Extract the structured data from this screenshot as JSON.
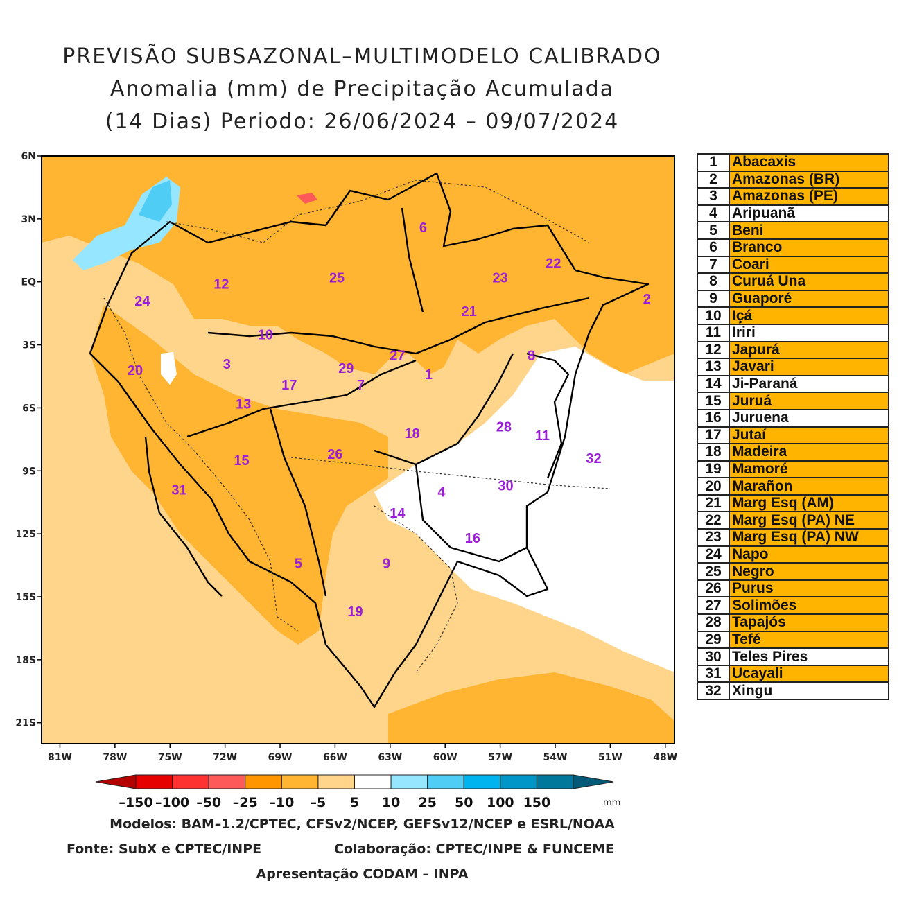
{
  "title": {
    "line1": "PREVISÃO SUBSAZONAL–MULTIMODELO CALIBRADO",
    "line2": "Anomalia (mm) de Precipitação Acumulada",
    "line3": "(14 Dias) Periodo: 26/06/2024 – 09/07/2024"
  },
  "map": {
    "lat_labels": [
      "6N",
      "3N",
      "EQ",
      "3S",
      "6S",
      "9S",
      "12S",
      "15S",
      "18S",
      "21S"
    ],
    "lon_labels": [
      "81W",
      "78W",
      "75W",
      "72W",
      "69W",
      "66W",
      "63W",
      "60W",
      "57W",
      "54W",
      "51W",
      "48W"
    ],
    "basins": [
      {
        "num": "1",
        "lon": -60.9,
        "lat": -4.4
      },
      {
        "num": "2",
        "lon": -49.0,
        "lat": -0.8
      },
      {
        "num": "3",
        "lon": -71.9,
        "lat": -3.9
      },
      {
        "num": "4",
        "lon": -60.2,
        "lat": -10.0
      },
      {
        "num": "5",
        "lon": -68.0,
        "lat": -13.4
      },
      {
        "num": "6",
        "lon": -61.2,
        "lat": 2.6
      },
      {
        "num": "7",
        "lon": -64.6,
        "lat": -4.9
      },
      {
        "num": "8",
        "lon": -55.3,
        "lat": -3.5
      },
      {
        "num": "9",
        "lon": -63.2,
        "lat": -13.4
      },
      {
        "num": "10",
        "lon": -69.8,
        "lat": -2.5
      },
      {
        "num": "11",
        "lon": -54.7,
        "lat": -7.3
      },
      {
        "num": "12",
        "lon": -72.2,
        "lat": -0.1
      },
      {
        "num": "13",
        "lon": -71.0,
        "lat": -5.8
      },
      {
        "num": "14",
        "lon": -62.6,
        "lat": -11.0
      },
      {
        "num": "15",
        "lon": -71.1,
        "lat": -8.5
      },
      {
        "num": "16",
        "lon": -58.5,
        "lat": -12.2
      },
      {
        "num": "17",
        "lon": -68.5,
        "lat": -4.9
      },
      {
        "num": "18",
        "lon": -61.8,
        "lat": -7.2
      },
      {
        "num": "19",
        "lon": -64.9,
        "lat": -15.7
      },
      {
        "num": "20",
        "lon": -76.9,
        "lat": -4.2
      },
      {
        "num": "21",
        "lon": -58.7,
        "lat": -1.4
      },
      {
        "num": "22",
        "lon": -54.1,
        "lat": 0.9
      },
      {
        "num": "23",
        "lon": -57.0,
        "lat": 0.2
      },
      {
        "num": "24",
        "lon": -76.5,
        "lat": -0.9
      },
      {
        "num": "25",
        "lon": -65.9,
        "lat": 0.2
      },
      {
        "num": "26",
        "lon": -66.0,
        "lat": -8.2
      },
      {
        "num": "27",
        "lon": -62.6,
        "lat": -3.5
      },
      {
        "num": "28",
        "lon": -56.8,
        "lat": -6.9
      },
      {
        "num": "29",
        "lon": -65.4,
        "lat": -4.1
      },
      {
        "num": "30",
        "lon": -56.7,
        "lat": -9.7
      },
      {
        "num": "31",
        "lon": -74.5,
        "lat": -9.9
      },
      {
        "num": "32",
        "lon": -51.9,
        "lat": -8.4
      }
    ]
  },
  "colorbar": {
    "labels": [
      "–150",
      "–100",
      "–50",
      "–25",
      "–10",
      "–5",
      "5",
      "10",
      "25",
      "50",
      "100",
      "150"
    ],
    "unit": "mm",
    "colors": [
      "#b40000",
      "#e60000",
      "#ff3232",
      "#ff5a5a",
      "#ff9600",
      "#ffb432",
      "#ffd58c",
      "#ffffff",
      "#96e6ff",
      "#50cdf5",
      "#00b4f0",
      "#0096c8",
      "#00789b",
      "#005a78"
    ]
  },
  "legend": [
    {
      "num": "1",
      "name": "Abacaxis",
      "hl": true
    },
    {
      "num": "2",
      "name": "Amazonas (BR)",
      "hl": true
    },
    {
      "num": "3",
      "name": "Amazonas (PE)",
      "hl": true
    },
    {
      "num": "4",
      "name": "Aripuanã",
      "hl": false
    },
    {
      "num": "5",
      "name": "Beni",
      "hl": true
    },
    {
      "num": "6",
      "name": "Branco",
      "hl": true
    },
    {
      "num": "7",
      "name": "Coari",
      "hl": true
    },
    {
      "num": "8",
      "name": "Curuá Una",
      "hl": true
    },
    {
      "num": "9",
      "name": "Guaporé",
      "hl": true
    },
    {
      "num": "10",
      "name": "Içá",
      "hl": true
    },
    {
      "num": "11",
      "name": "Iriri",
      "hl": false
    },
    {
      "num": "12",
      "name": "Japurá",
      "hl": true
    },
    {
      "num": "13",
      "name": "Javari",
      "hl": true
    },
    {
      "num": "14",
      "name": "Ji-Paraná",
      "hl": false
    },
    {
      "num": "15",
      "name": "Juruá",
      "hl": true
    },
    {
      "num": "16",
      "name": "Juruena",
      "hl": false
    },
    {
      "num": "17",
      "name": "Jutaí",
      "hl": true
    },
    {
      "num": "18",
      "name": "Madeira",
      "hl": true
    },
    {
      "num": "19",
      "name": "Mamoré",
      "hl": true
    },
    {
      "num": "20",
      "name": "Marañon",
      "hl": true
    },
    {
      "num": "21",
      "name": "Marg Esq (AM)",
      "hl": true
    },
    {
      "num": "22",
      "name": "Marg Esq (PA) NE",
      "hl": true
    },
    {
      "num": "23",
      "name": "Marg Esq (PA) NW",
      "hl": true
    },
    {
      "num": "24",
      "name": "Napo",
      "hl": true
    },
    {
      "num": "25",
      "name": "Negro",
      "hl": true
    },
    {
      "num": "26",
      "name": "Purus",
      "hl": true
    },
    {
      "num": "27",
      "name": "Solimões",
      "hl": true
    },
    {
      "num": "28",
      "name": "Tapajós",
      "hl": true
    },
    {
      "num": "29",
      "name": "Tefé",
      "hl": true
    },
    {
      "num": "30",
      "name": "Teles Pires",
      "hl": false
    },
    {
      "num": "31",
      "name": "Ucayali",
      "hl": true
    },
    {
      "num": "32",
      "name": "Xingu",
      "hl": false
    }
  ],
  "footer": {
    "models": "Modelos: BAM–1.2/CPTEC, CFSv2/NCEP, GEFSv12/NCEP e ESRL/NOAA",
    "source": "Fonte: SubX e CPTEC/INPE",
    "collab": "Colaboração: CPTEC/INPE & FUNCEME",
    "presentation": "Apresentação CODAM – INPA"
  }
}
